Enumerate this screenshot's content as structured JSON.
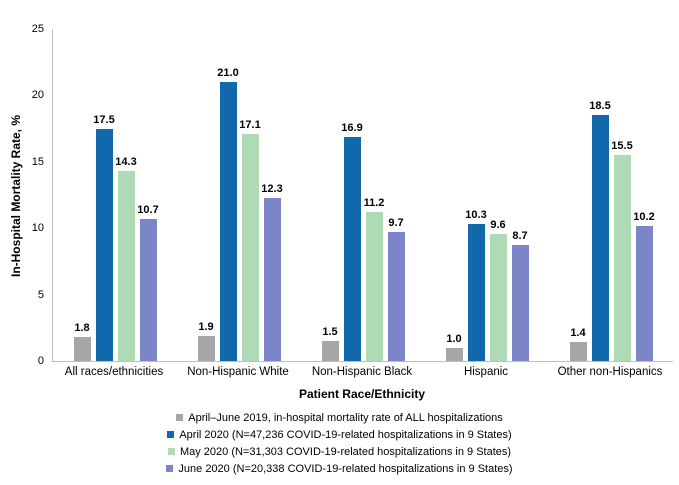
{
  "chart_data": {
    "type": "bar",
    "title": "",
    "xlabel": "Patient Race/Ethnicity",
    "ylabel": "In-Hospital Mortality Rate, %",
    "ylim": [
      0,
      25
    ],
    "yticks": [
      0,
      5,
      10,
      15,
      20,
      25
    ],
    "grid": false,
    "legend_position": "bottom",
    "value_label_decimals": 1,
    "axis_color": "#BFBFBF",
    "categories": [
      "All races/ethnicities",
      "Non-Hispanic White",
      "Non-Hispanic Black",
      "Hispanic",
      "Other non-Hispanics"
    ],
    "series": [
      {
        "name": "April–June 2019, in-hospital mortality rate of ALL hospitalizations",
        "color": "#A6A6A6",
        "values": [
          1.8,
          1.9,
          1.5,
          1.0,
          1.4
        ]
      },
      {
        "name": "April 2020 (N=47,236 COVID-19-related hospitalizations in 9 States)",
        "color": "#1169AC",
        "values": [
          17.5,
          21.0,
          16.9,
          10.3,
          18.5
        ]
      },
      {
        "name": "May 2020 (N=31,303 COVID-19-related hospitalizations in 9 States)",
        "color": "#AEDBB5",
        "values": [
          14.3,
          17.1,
          11.2,
          9.6,
          15.5
        ]
      },
      {
        "name": "June 2020 (N=20,338 COVID-19-related hospitalizations in 9 States)",
        "color": "#7B85C8",
        "values": [
          10.7,
          12.3,
          9.7,
          8.7,
          10.2
        ]
      }
    ]
  }
}
